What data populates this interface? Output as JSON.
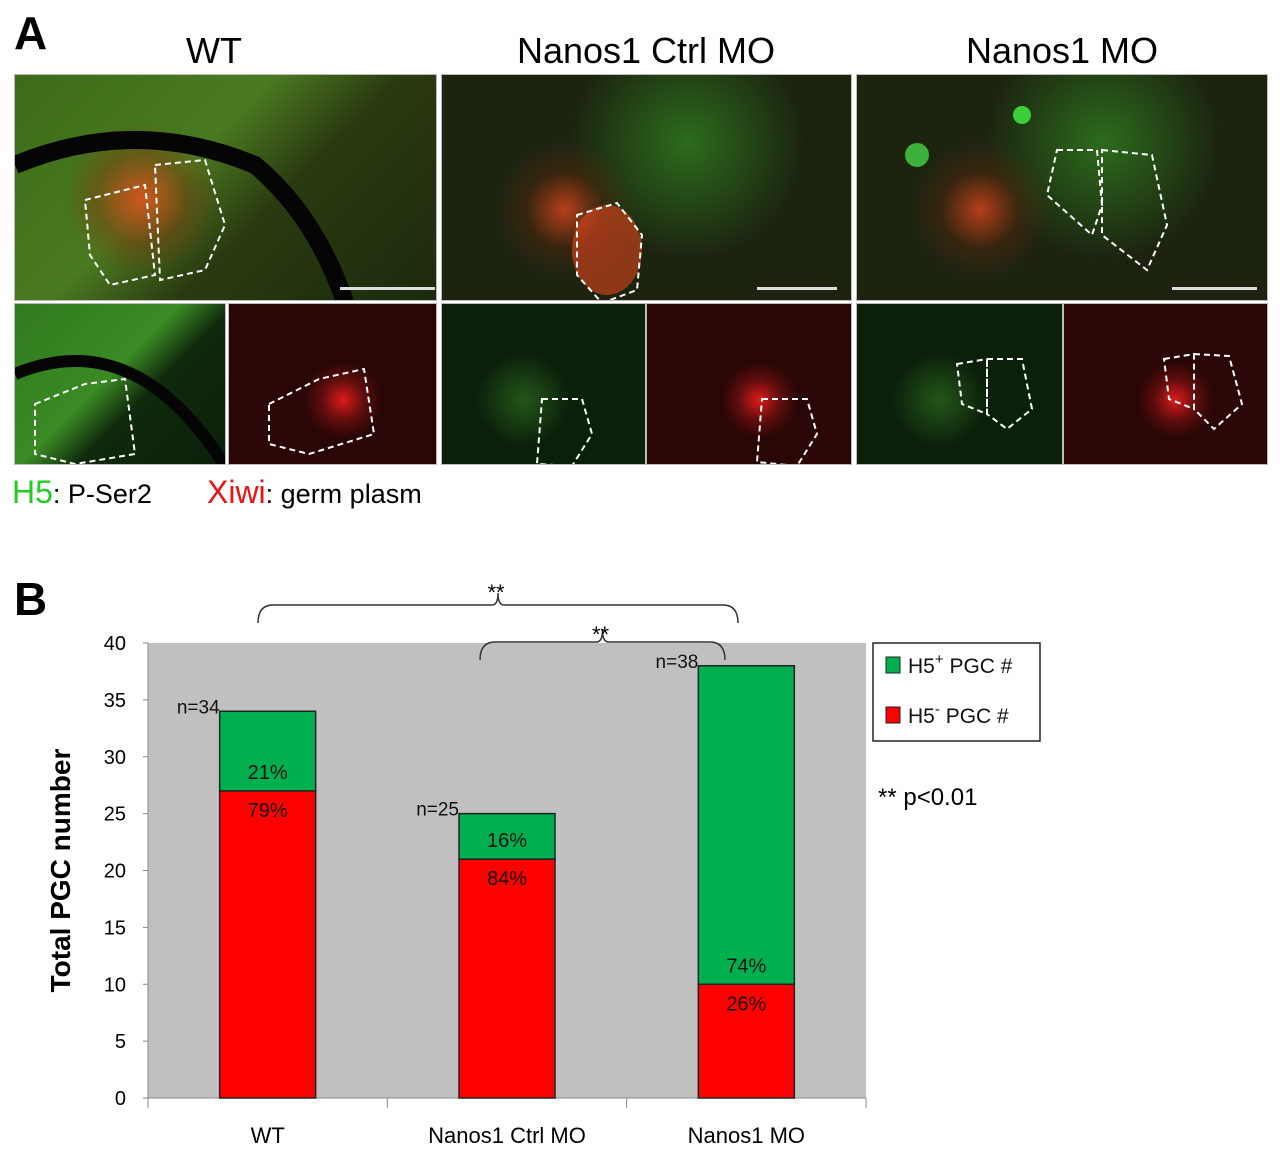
{
  "panel_a": {
    "letter": "A",
    "columns": [
      "WT",
      "Nanos1 Ctrl MO",
      "Nanos1 MO"
    ],
    "legend": [
      {
        "marker": "H5",
        "text": ": P-Ser2",
        "color": "#22cc22"
      },
      {
        "marker": "Xiwi",
        "text": ": germ plasm",
        "color": "#ee1111"
      }
    ]
  },
  "panel_b": {
    "letter": "B"
  },
  "chart_data": {
    "type": "bar",
    "stacked": true,
    "categories": [
      "WT",
      "Nanos1 Ctrl MO",
      "Nanos1 MO"
    ],
    "series": [
      {
        "name": "H5⁻ PGC #",
        "legend_base": "H5",
        "legend_sup": "-",
        "legend_tail": " PGC #",
        "color": "#ff0000",
        "values": [
          27,
          21,
          10
        ],
        "labels": [
          "79%",
          "84%",
          "26%"
        ]
      },
      {
        "name": "H5⁺ PGC #",
        "legend_base": "H5",
        "legend_sup": "+",
        "legend_tail": " PGC #",
        "color": "#00b050",
        "values": [
          7,
          4,
          28
        ],
        "labels": [
          "21%",
          "16%",
          "74%"
        ]
      }
    ],
    "totals_labels": [
      "n=34",
      "n=25",
      "n=38"
    ],
    "ylabel": "Total PGC number",
    "xlabel": "",
    "ylim": [
      0,
      40
    ],
    "yticks": [
      "0",
      "5",
      "10",
      "15",
      "20",
      "25",
      "30",
      "35",
      "40"
    ],
    "plot_background": "#c0c0c0",
    "legend_position": "right",
    "significance": [
      {
        "between": [
          "WT",
          "Nanos1 MO"
        ],
        "label": "**"
      },
      {
        "between": [
          "Nanos1 Ctrl MO",
          "Nanos1 MO"
        ],
        "label": "**"
      }
    ],
    "annotation": "** p<0.01"
  }
}
